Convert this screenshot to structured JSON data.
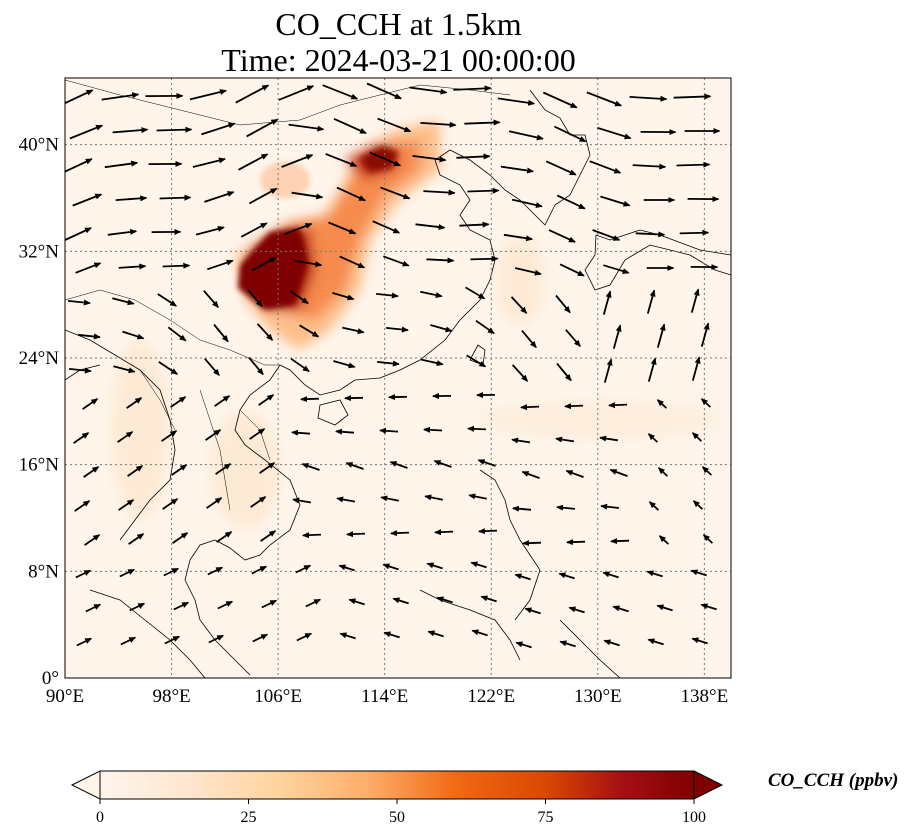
{
  "title": {
    "line1": "CO_CCH at 1.5km",
    "line2": "Time: 2024-03-21 00:00:00"
  },
  "map": {
    "lon_range": [
      90,
      140
    ],
    "lat_range": [
      0,
      45
    ],
    "lat_ticks": [
      {
        "value": 0,
        "label": "0°"
      },
      {
        "value": 8,
        "label": "8°N"
      },
      {
        "value": 16,
        "label": "16°N"
      },
      {
        "value": 24,
        "label": "24°N"
      },
      {
        "value": 32,
        "label": "32°N"
      },
      {
        "value": 40,
        "label": "40°N"
      }
    ],
    "lon_ticks": [
      {
        "value": 90,
        "label": "90°E"
      },
      {
        "value": 98,
        "label": "98°E"
      },
      {
        "value": 106,
        "label": "106°E"
      },
      {
        "value": 114,
        "label": "114°E"
      },
      {
        "value": 122,
        "label": "122°E"
      },
      {
        "value": 130,
        "label": "130°E"
      },
      {
        "value": 138,
        "label": "138°E"
      }
    ],
    "gridlines": true,
    "background_color": "#fff5eb"
  },
  "colorbar": {
    "label": "CO_CCH (ppbv)",
    "ticks": [
      "0",
      "25",
      "50",
      "75",
      "100"
    ],
    "range": [
      0,
      100
    ],
    "colormap": [
      "#fff5eb",
      "#fdd49e",
      "#fdbb84",
      "#fc8d59",
      "#ef6548",
      "#d7301f",
      "#b30000",
      "#7f0000"
    ],
    "extend": "both"
  }
}
